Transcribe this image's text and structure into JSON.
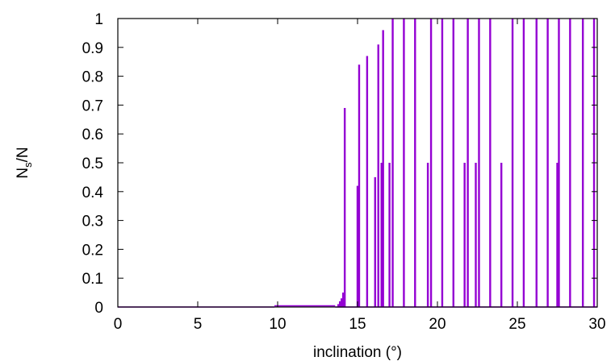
{
  "chart_data": {
    "type": "line",
    "title": "",
    "xlabel": "inclination (°)",
    "ylabel_main": "N",
    "ylabel_sub": "s",
    "ylabel_rest": "/N",
    "xlim": [
      0,
      30
    ],
    "ylim": [
      0,
      1
    ],
    "x_ticks": [
      0,
      5,
      10,
      15,
      20,
      25,
      30
    ],
    "x_tick_labels": [
      "0",
      "5",
      "10",
      "15",
      "20",
      "25",
      "30"
    ],
    "y_ticks": [
      0,
      0.1,
      0.2,
      0.3,
      0.4,
      0.5,
      0.6,
      0.7,
      0.8,
      0.9,
      1
    ],
    "y_tick_labels": [
      "0",
      "0.1",
      "0.2",
      "0.3",
      "0.4",
      "0.5",
      "0.6",
      "0.7",
      "0.8",
      "0.9",
      "1"
    ],
    "grid": false,
    "legend": "none",
    "series": [
      {
        "color": "#9400d3",
        "baseline_segments": [
          {
            "x_start": 0,
            "x_end": 9.8,
            "y": 0
          },
          {
            "x_start": 9.8,
            "x_end": 13.6,
            "y": 0.004
          },
          {
            "x_start": 13.6,
            "x_end": 30,
            "y": 0
          }
        ],
        "spikes": [
          {
            "x": 13.8,
            "y": 0.01
          },
          {
            "x": 13.9,
            "y": 0.02
          },
          {
            "x": 14.0,
            "y": 0.03
          },
          {
            "x": 14.1,
            "y": 0.05
          },
          {
            "x": 14.2,
            "y": 0.69
          },
          {
            "x": 15.0,
            "y": 0.42
          },
          {
            "x": 15.1,
            "y": 0.84
          },
          {
            "x": 15.6,
            "y": 0.87
          },
          {
            "x": 16.1,
            "y": 0.45
          },
          {
            "x": 16.3,
            "y": 0.91
          },
          {
            "x": 16.5,
            "y": 0.5
          },
          {
            "x": 16.6,
            "y": 0.96
          },
          {
            "x": 17.0,
            "y": 0.5
          },
          {
            "x": 17.2,
            "y": 1
          },
          {
            "x": 17.9,
            "y": 1
          },
          {
            "x": 18.6,
            "y": 1
          },
          {
            "x": 19.4,
            "y": 0.5
          },
          {
            "x": 19.6,
            "y": 1
          },
          {
            "x": 20.3,
            "y": 1
          },
          {
            "x": 21.0,
            "y": 1
          },
          {
            "x": 21.7,
            "y": 0.5
          },
          {
            "x": 21.9,
            "y": 1
          },
          {
            "x": 22.4,
            "y": 0.5
          },
          {
            "x": 22.6,
            "y": 1
          },
          {
            "x": 23.3,
            "y": 1
          },
          {
            "x": 24.0,
            "y": 0.5
          },
          {
            "x": 24.7,
            "y": 1
          },
          {
            "x": 25.4,
            "y": 1
          },
          {
            "x": 26.2,
            "y": 1
          },
          {
            "x": 26.9,
            "y": 1
          },
          {
            "x": 27.5,
            "y": 0.5
          },
          {
            "x": 27.6,
            "y": 1
          },
          {
            "x": 28.3,
            "y": 1
          },
          {
            "x": 29.1,
            "y": 1
          },
          {
            "x": 29.8,
            "y": 1
          }
        ]
      }
    ]
  }
}
